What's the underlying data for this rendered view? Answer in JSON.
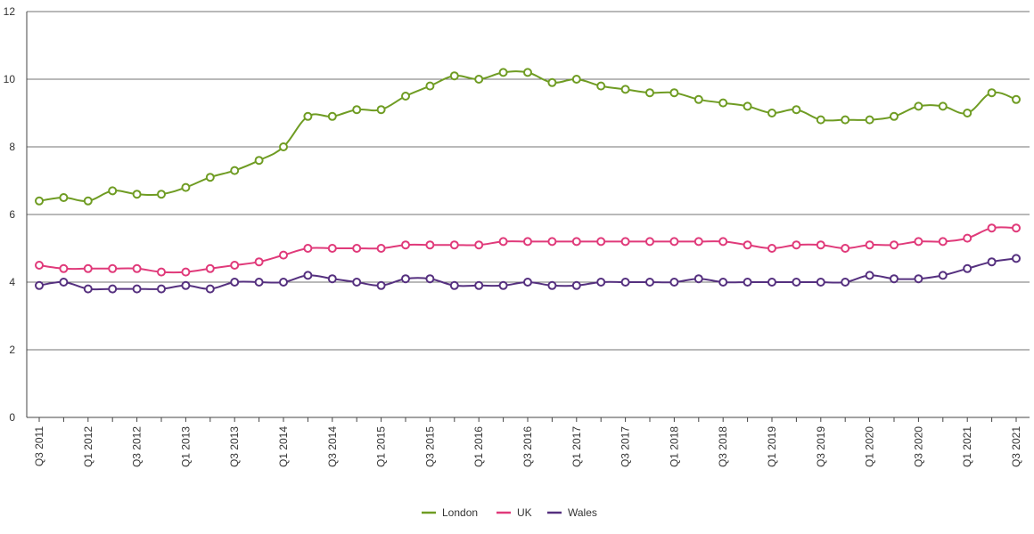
{
  "chart_data": {
    "type": "line",
    "title": "",
    "xlabel": "",
    "ylabel": "",
    "ylim": [
      0,
      12
    ],
    "yticks": [
      0,
      2,
      4,
      6,
      8,
      10,
      12
    ],
    "grid": "horizontal",
    "legend_position": "bottom-center",
    "categories": [
      "Q3 2011",
      "Q4 2011",
      "Q1 2012",
      "Q2 2012",
      "Q3 2012",
      "Q4 2012",
      "Q1 2013",
      "Q2 2013",
      "Q3 2013",
      "Q4 2013",
      "Q1 2014",
      "Q2 2014",
      "Q3 2014",
      "Q4 2014",
      "Q1 2015",
      "Q2 2015",
      "Q3 2015",
      "Q4 2015",
      "Q1 2016",
      "Q2 2016",
      "Q3 2016",
      "Q4 2016",
      "Q1 2017",
      "Q2 2017",
      "Q3 2017",
      "Q4 2017",
      "Q1 2018",
      "Q2 2018",
      "Q3 2018",
      "Q4 2018",
      "Q1 2019",
      "Q2 2019",
      "Q3 2019",
      "Q4 2019",
      "Q1 2020",
      "Q2 2020",
      "Q3 2020",
      "Q4 2020",
      "Q1 2021",
      "Q2 2021",
      "Q3 2021"
    ],
    "tick_labels": [
      "Q3 2011",
      "Q1 2012",
      "Q3 2012",
      "Q1 2013",
      "Q3 2013",
      "Q1 2014",
      "Q3 2014",
      "Q1 2015",
      "Q3 2015",
      "Q1 2016",
      "Q3 2016",
      "Q1 2017",
      "Q3 2017",
      "Q1 2018",
      "Q3 2018",
      "Q1 2019",
      "Q3 2019",
      "Q1 2020",
      "Q3 2020",
      "Q1 2021",
      "Q3 2021"
    ],
    "series": [
      {
        "name": "London",
        "color": "#6f9c23",
        "values": [
          6.4,
          6.5,
          6.4,
          6.7,
          6.6,
          6.6,
          6.8,
          7.1,
          7.3,
          7.6,
          8.0,
          8.9,
          8.9,
          9.1,
          9.1,
          9.5,
          9.8,
          10.1,
          10.0,
          10.2,
          10.2,
          9.9,
          10.0,
          9.8,
          9.7,
          9.6,
          9.6,
          9.4,
          9.3,
          9.2,
          9.0,
          9.1,
          8.8,
          8.8,
          8.8,
          8.9,
          9.2,
          9.2,
          9.0,
          9.6,
          9.4
        ]
      },
      {
        "name": "UK",
        "color": "#e03a7a",
        "values": [
          4.5,
          4.4,
          4.4,
          4.4,
          4.4,
          4.3,
          4.3,
          4.4,
          4.5,
          4.6,
          4.8,
          5.0,
          5.0,
          5.0,
          5.0,
          5.1,
          5.1,
          5.1,
          5.1,
          5.2,
          5.2,
          5.2,
          5.2,
          5.2,
          5.2,
          5.2,
          5.2,
          5.2,
          5.2,
          5.1,
          5.0,
          5.1,
          5.1,
          5.0,
          5.1,
          5.1,
          5.2,
          5.2,
          5.3,
          5.6,
          5.6
        ]
      },
      {
        "name": "Wales",
        "color": "#55307f",
        "values": [
          3.9,
          4.0,
          3.8,
          3.8,
          3.8,
          3.8,
          3.9,
          3.8,
          4.0,
          4.0,
          4.0,
          4.2,
          4.1,
          4.0,
          3.9,
          4.1,
          4.1,
          3.9,
          3.9,
          3.9,
          4.0,
          3.9,
          3.9,
          4.0,
          4.0,
          4.0,
          4.0,
          4.1,
          4.0,
          4.0,
          4.0,
          4.0,
          4.0,
          4.0,
          4.2,
          4.1,
          4.1,
          4.2,
          4.4,
          4.6,
          4.7
        ]
      }
    ]
  }
}
